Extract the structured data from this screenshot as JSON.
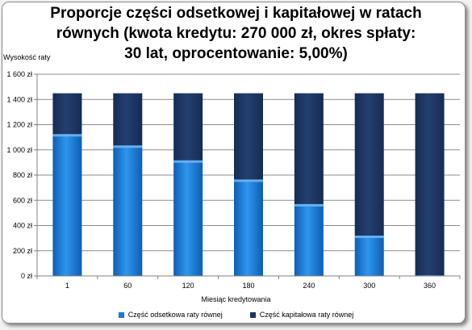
{
  "chart_data": {
    "type": "bar",
    "stacked": true,
    "title_lines": [
      "Proporcje części odsetkowej i kapitałowej w ratach",
      "równych (kwota kredytu: 270 000 zł, okres spłaty:",
      "30 lat, oprocentowanie: 5,00%)"
    ],
    "ylabel": "Wysokość raty",
    "xlabel": "Miesiąc kredytowania",
    "ylim": [
      0,
      1600
    ],
    "yticks": [
      0,
      200,
      400,
      600,
      800,
      1000,
      1200,
      1400,
      1600
    ],
    "ytick_labels": [
      "0 zł",
      "200 zł",
      "400 zł",
      "600 zł",
      "800 zł",
      "1 000 zł",
      "1 200 zł",
      "1 400 zł",
      "1 600 zł"
    ],
    "categories": [
      "1",
      "60",
      "120",
      "180",
      "240",
      "300",
      "360"
    ],
    "grid": true,
    "legend_position": "bottom",
    "series": [
      {
        "name": "Część odsetkowa raty równej",
        "color": "#1a7ad6",
        "values": [
          1125,
          1035,
          917,
          765,
          570,
          320,
          6
        ]
      },
      {
        "name": "Część kapitałowa raty równej",
        "color": "#1b3766",
        "values": [
          324,
          414,
          532,
          684,
          879,
          1129,
          1443
        ]
      }
    ]
  }
}
